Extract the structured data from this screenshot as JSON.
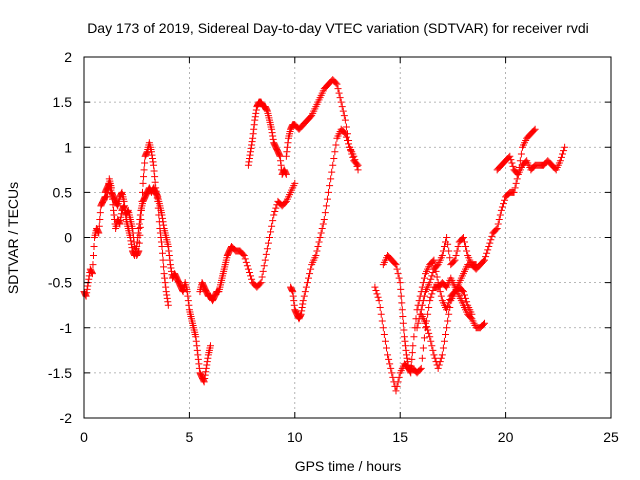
{
  "chart_data": {
    "type": "scatter",
    "title": "Day 173 of 2019, Sidereal Day-to-day VTEC variation (SDTVAR) for receiver rvdi",
    "xlabel": "GPS time / hours",
    "ylabel": "SDTVAR / TECUs",
    "xlim": [
      0,
      25
    ],
    "ylim": [
      -2,
      2
    ],
    "xticks": [
      "0",
      "5",
      "10",
      "15",
      "20",
      "25"
    ],
    "yticks": [
      "-2",
      "-1.5",
      "-1",
      "-0.5",
      "0",
      "0.5",
      "1",
      "1.5",
      "2"
    ],
    "grid": true,
    "marker": "plus",
    "color": "#ff0000",
    "series": [
      {
        "points": [
          [
            0.0,
            -0.6
          ],
          [
            0.1,
            -0.65
          ],
          [
            0.2,
            -0.5
          ],
          [
            0.3,
            -0.35
          ],
          [
            0.4,
            -0.4
          ],
          [
            0.5,
            0.0
          ],
          [
            0.6,
            0.1
          ],
          [
            0.7,
            0.05
          ],
          [
            0.8,
            0.35
          ],
          [
            0.9,
            0.4
          ],
          [
            1.0,
            0.45
          ],
          [
            1.1,
            0.45
          ],
          [
            1.2,
            0.65
          ],
          [
            1.3,
            0.55
          ],
          [
            1.4,
            0.3
          ],
          [
            1.5,
            0.1
          ],
          [
            1.6,
            0.2
          ],
          [
            1.7,
            0.15
          ],
          [
            1.8,
            0.3
          ],
          [
            1.9,
            0.35
          ],
          [
            2.0,
            0.25
          ],
          [
            2.1,
            0.3
          ],
          [
            2.2,
            0.2
          ],
          [
            2.3,
            0.1
          ],
          [
            2.4,
            -0.1
          ],
          [
            2.5,
            -0.2
          ],
          [
            2.6,
            -0.15
          ],
          [
            2.7,
            0.2
          ],
          [
            2.8,
            0.6
          ],
          [
            2.9,
            0.9
          ],
          [
            3.0,
            0.95
          ],
          [
            3.1,
            1.05
          ],
          [
            3.2,
            0.95
          ],
          [
            3.3,
            0.8
          ],
          [
            3.4,
            0.55
          ],
          [
            3.5,
            0.4
          ],
          [
            3.6,
            0.1
          ],
          [
            3.7,
            -0.1
          ],
          [
            3.8,
            -0.4
          ],
          [
            3.9,
            -0.6
          ],
          [
            4.0,
            -0.75
          ]
        ]
      },
      {
        "points": [
          [
            1.0,
            0.5
          ],
          [
            1.1,
            0.55
          ],
          [
            1.2,
            0.6
          ],
          [
            1.3,
            0.5
          ],
          [
            1.4,
            0.45
          ],
          [
            1.5,
            0.4
          ],
          [
            1.6,
            0.35
          ],
          [
            1.7,
            0.45
          ],
          [
            1.8,
            0.5
          ],
          [
            1.9,
            0.4
          ],
          [
            2.0,
            0.2
          ],
          [
            2.1,
            0.1
          ],
          [
            2.2,
            0.0
          ],
          [
            2.3,
            -0.15
          ],
          [
            2.4,
            -0.2
          ],
          [
            2.5,
            -0.1
          ],
          [
            2.6,
            0.1
          ],
          [
            2.7,
            0.3
          ],
          [
            2.8,
            0.4
          ],
          [
            2.9,
            0.45
          ],
          [
            3.0,
            0.5
          ],
          [
            3.1,
            0.55
          ],
          [
            3.2,
            0.5
          ],
          [
            3.3,
            0.55
          ],
          [
            3.4,
            0.5
          ],
          [
            3.5,
            0.45
          ],
          [
            3.6,
            0.35
          ],
          [
            3.7,
            0.25
          ],
          [
            3.8,
            0.1
          ],
          [
            3.9,
            0.0
          ],
          [
            4.0,
            -0.1
          ],
          [
            4.1,
            -0.3
          ],
          [
            4.2,
            -0.45
          ],
          [
            4.3,
            -0.4
          ],
          [
            4.4,
            -0.45
          ],
          [
            4.5,
            -0.5
          ],
          [
            4.6,
            -0.55
          ],
          [
            4.7,
            -0.6
          ],
          [
            4.8,
            -0.5
          ],
          [
            4.9,
            -0.6
          ],
          [
            5.0,
            -0.8
          ],
          [
            5.1,
            -0.9
          ],
          [
            5.2,
            -1.0
          ],
          [
            5.3,
            -1.1
          ],
          [
            5.4,
            -1.3
          ],
          [
            5.5,
            -1.5
          ],
          [
            5.6,
            -1.55
          ],
          [
            5.7,
            -1.6
          ],
          [
            5.8,
            -1.45
          ],
          [
            5.9,
            -1.3
          ],
          [
            6.0,
            -1.2
          ]
        ]
      },
      {
        "points": [
          [
            5.5,
            -0.6
          ],
          [
            5.6,
            -0.5
          ],
          [
            5.7,
            -0.55
          ],
          [
            5.8,
            -0.6
          ],
          [
            5.9,
            -0.65
          ],
          [
            6.0,
            -0.65
          ],
          [
            6.1,
            -0.7
          ],
          [
            6.2,
            -0.65
          ],
          [
            6.3,
            -0.6
          ],
          [
            6.4,
            -0.6
          ],
          [
            6.5,
            -0.5
          ],
          [
            6.6,
            -0.4
          ],
          [
            6.7,
            -0.3
          ],
          [
            6.8,
            -0.2
          ],
          [
            6.9,
            -0.15
          ],
          [
            7.0,
            -0.1
          ],
          [
            7.2,
            -0.15
          ],
          [
            7.4,
            -0.15
          ],
          [
            7.6,
            -0.2
          ],
          [
            7.8,
            -0.35
          ],
          [
            8.0,
            -0.5
          ],
          [
            8.2,
            -0.55
          ],
          [
            8.4,
            -0.5
          ],
          [
            8.6,
            -0.25
          ],
          [
            8.8,
            0.0
          ],
          [
            9.0,
            0.25
          ],
          [
            9.2,
            0.4
          ],
          [
            9.4,
            0.35
          ],
          [
            9.6,
            0.4
          ],
          [
            9.8,
            0.5
          ],
          [
            10.0,
            0.6
          ]
        ]
      },
      {
        "points": [
          [
            7.8,
            0.8
          ],
          [
            7.9,
            0.95
          ],
          [
            8.0,
            1.1
          ],
          [
            8.1,
            1.3
          ],
          [
            8.2,
            1.45
          ],
          [
            8.3,
            1.5
          ],
          [
            8.4,
            1.5
          ],
          [
            8.5,
            1.45
          ],
          [
            8.6,
            1.45
          ],
          [
            8.7,
            1.4
          ],
          [
            8.8,
            1.3
          ],
          [
            8.9,
            1.2
          ],
          [
            9.0,
            1.05
          ],
          [
            9.1,
            1.0
          ],
          [
            9.2,
            0.95
          ],
          [
            9.3,
            0.9
          ],
          [
            9.4,
            0.7
          ],
          [
            9.5,
            0.75
          ],
          [
            9.6,
            0.7
          ]
        ]
      },
      {
        "points": [
          [
            9.6,
            0.9
          ],
          [
            9.7,
            1.1
          ],
          [
            9.8,
            1.2
          ],
          [
            9.9,
            1.25
          ],
          [
            10.0,
            1.25
          ],
          [
            10.2,
            1.2
          ],
          [
            10.4,
            1.25
          ],
          [
            10.6,
            1.3
          ],
          [
            10.8,
            1.35
          ],
          [
            11.0,
            1.45
          ],
          [
            11.2,
            1.55
          ],
          [
            11.4,
            1.65
          ],
          [
            11.6,
            1.7
          ],
          [
            11.8,
            1.75
          ],
          [
            12.0,
            1.7
          ],
          [
            12.2,
            1.5
          ],
          [
            12.4,
            1.3
          ],
          [
            12.6,
            1.0
          ],
          [
            12.8,
            0.85
          ],
          [
            13.0,
            0.8
          ]
        ]
      },
      {
        "points": [
          [
            9.8,
            -0.55
          ],
          [
            9.9,
            -0.6
          ],
          [
            10.0,
            -0.8
          ],
          [
            10.1,
            -0.85
          ],
          [
            10.2,
            -0.9
          ],
          [
            10.3,
            -0.85
          ],
          [
            10.4,
            -0.7
          ],
          [
            10.6,
            -0.5
          ],
          [
            10.8,
            -0.3
          ],
          [
            11.0,
            -0.2
          ],
          [
            11.2,
            0.0
          ],
          [
            11.4,
            0.2
          ],
          [
            11.6,
            0.5
          ],
          [
            11.8,
            0.8
          ],
          [
            12.0,
            1.1
          ],
          [
            12.2,
            1.2
          ],
          [
            12.4,
            1.15
          ],
          [
            12.6,
            1.0
          ],
          [
            12.8,
            0.9
          ],
          [
            13.0,
            0.75
          ]
        ]
      },
      {
        "points": [
          [
            13.8,
            -0.55
          ],
          [
            14.0,
            -0.7
          ],
          [
            14.2,
            -1.0
          ],
          [
            14.4,
            -1.3
          ],
          [
            14.6,
            -1.5
          ],
          [
            14.8,
            -1.7
          ],
          [
            15.0,
            -1.5
          ],
          [
            15.2,
            -1.4
          ],
          [
            15.4,
            -1.45
          ],
          [
            15.6,
            -1.45
          ],
          [
            15.8,
            -1.5
          ],
          [
            16.0,
            -1.45
          ],
          [
            16.2,
            -1.0
          ],
          [
            16.4,
            -0.7
          ],
          [
            16.6,
            -0.55
          ],
          [
            16.8,
            -0.55
          ],
          [
            17.0,
            -0.5
          ],
          [
            17.2,
            -0.55
          ],
          [
            17.4,
            -0.45
          ],
          [
            17.6,
            -0.55
          ],
          [
            17.8,
            -0.65
          ],
          [
            18.0,
            -0.75
          ],
          [
            18.2,
            -0.85
          ],
          [
            18.4,
            -0.9
          ],
          [
            18.6,
            -1.0
          ],
          [
            18.8,
            -1.0
          ],
          [
            19.0,
            -0.95
          ]
        ]
      },
      {
        "points": [
          [
            14.2,
            -0.3
          ],
          [
            14.4,
            -0.2
          ],
          [
            14.6,
            -0.25
          ],
          [
            14.8,
            -0.3
          ],
          [
            15.0,
            -0.5
          ],
          [
            15.1,
            -0.8
          ],
          [
            15.2,
            -1.1
          ],
          [
            15.3,
            -1.3
          ],
          [
            15.4,
            -1.45
          ],
          [
            15.5,
            -1.5
          ],
          [
            15.6,
            -1.2
          ],
          [
            15.8,
            -0.8
          ],
          [
            16.0,
            -0.6
          ],
          [
            16.2,
            -0.4
          ],
          [
            16.4,
            -0.3
          ],
          [
            16.6,
            -0.25
          ],
          [
            16.8,
            -0.5
          ],
          [
            17.0,
            -0.7
          ],
          [
            17.2,
            -0.8
          ],
          [
            17.4,
            -0.65
          ],
          [
            17.6,
            -0.6
          ],
          [
            17.8,
            -0.5
          ],
          [
            18.0,
            -0.4
          ],
          [
            18.2,
            -0.3
          ],
          [
            18.4,
            -0.3
          ],
          [
            18.6,
            -0.35
          ],
          [
            18.8,
            -0.3
          ],
          [
            19.0,
            -0.25
          ],
          [
            19.2,
            -0.1
          ],
          [
            19.4,
            0.05
          ],
          [
            19.6,
            0.1
          ],
          [
            19.8,
            0.3
          ],
          [
            20.0,
            0.45
          ],
          [
            20.2,
            0.5
          ],
          [
            20.4,
            0.5
          ],
          [
            20.6,
            0.7
          ],
          [
            20.8,
            1.0
          ],
          [
            21.0,
            1.1
          ],
          [
            21.2,
            1.15
          ],
          [
            21.4,
            1.2
          ]
        ]
      },
      {
        "points": [
          [
            15.8,
            -1.0
          ],
          [
            16.0,
            -0.8
          ],
          [
            16.2,
            -0.6
          ],
          [
            16.4,
            -0.5
          ],
          [
            16.6,
            -0.35
          ],
          [
            16.8,
            -0.3
          ],
          [
            17.0,
            -0.2
          ],
          [
            17.2,
            0.0
          ],
          [
            17.4,
            -0.3
          ],
          [
            17.6,
            -0.25
          ],
          [
            17.8,
            -0.05
          ],
          [
            18.0,
            0.0
          ],
          [
            18.2,
            -0.2
          ],
          [
            18.4,
            -0.3
          ],
          [
            18.6,
            -0.3
          ]
        ]
      },
      {
        "points": [
          [
            16.0,
            -0.85
          ],
          [
            16.2,
            -0.95
          ],
          [
            16.4,
            -1.1
          ],
          [
            16.6,
            -1.3
          ],
          [
            16.8,
            -1.45
          ],
          [
            17.0,
            -1.3
          ],
          [
            17.2,
            -1.0
          ],
          [
            17.4,
            -0.7
          ],
          [
            17.6,
            -0.6
          ],
          [
            17.8,
            -0.55
          ],
          [
            18.0,
            -0.6
          ],
          [
            18.2,
            -0.75
          ],
          [
            18.4,
            -0.85
          ]
        ]
      },
      {
        "points": [
          [
            19.6,
            0.75
          ],
          [
            19.8,
            0.8
          ],
          [
            20.0,
            0.85
          ],
          [
            20.2,
            0.9
          ],
          [
            20.4,
            0.75
          ],
          [
            20.6,
            0.7
          ],
          [
            20.8,
            0.8
          ],
          [
            21.0,
            0.85
          ],
          [
            21.2,
            0.75
          ],
          [
            21.4,
            0.8
          ],
          [
            21.6,
            0.8
          ],
          [
            21.8,
            0.8
          ],
          [
            22.0,
            0.85
          ],
          [
            22.2,
            0.8
          ],
          [
            22.4,
            0.75
          ],
          [
            22.6,
            0.85
          ],
          [
            22.8,
            1.0
          ]
        ]
      }
    ]
  }
}
